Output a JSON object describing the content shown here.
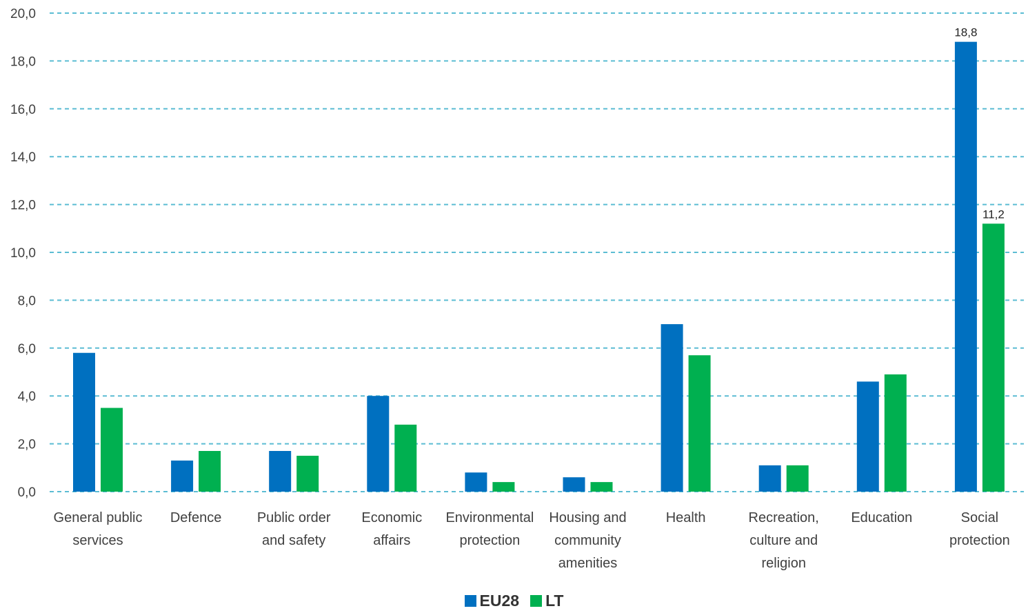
{
  "chart_data": {
    "type": "bar",
    "categories": [
      [
        "General public",
        "services"
      ],
      [
        "Defence"
      ],
      [
        "Public order",
        "and safety"
      ],
      [
        "Economic",
        "affairs"
      ],
      [
        "Environmental",
        "protection"
      ],
      [
        "Housing and",
        "community",
        "amenities"
      ],
      [
        "Health"
      ],
      [
        "Recreation,",
        "culture and",
        "religion"
      ],
      [
        "Education"
      ],
      [
        "Social",
        "protection"
      ]
    ],
    "series": [
      {
        "name": "EU28",
        "color": "#0070C0",
        "values": [
          5.8,
          1.3,
          1.7,
          4.0,
          0.8,
          0.6,
          7.0,
          1.1,
          4.6,
          18.8
        ]
      },
      {
        "name": "LT",
        "color": "#00B050",
        "values": [
          3.5,
          1.7,
          1.5,
          2.8,
          0.4,
          0.4,
          5.7,
          1.1,
          4.9,
          11.2
        ]
      }
    ],
    "ylim": [
      0,
      20
    ],
    "yticks": [
      "0,0",
      "2,0",
      "4,0",
      "6,0",
      "8,0",
      "10,0",
      "12,0",
      "14,0",
      "16,0",
      "18,0",
      "20,0"
    ],
    "data_labels": [
      {
        "series": 0,
        "category": 9,
        "text": "18,8"
      },
      {
        "series": 1,
        "category": 9,
        "text": "11,2"
      }
    ],
    "grid": true,
    "gridline_color": "#5BBCD3",
    "legend_position": "bottom",
    "title": "",
    "xlabel": "",
    "ylabel": ""
  },
  "legend": {
    "items": [
      {
        "label": "EU28",
        "color": "#0070C0"
      },
      {
        "label": "LT",
        "color": "#00B050"
      }
    ]
  }
}
